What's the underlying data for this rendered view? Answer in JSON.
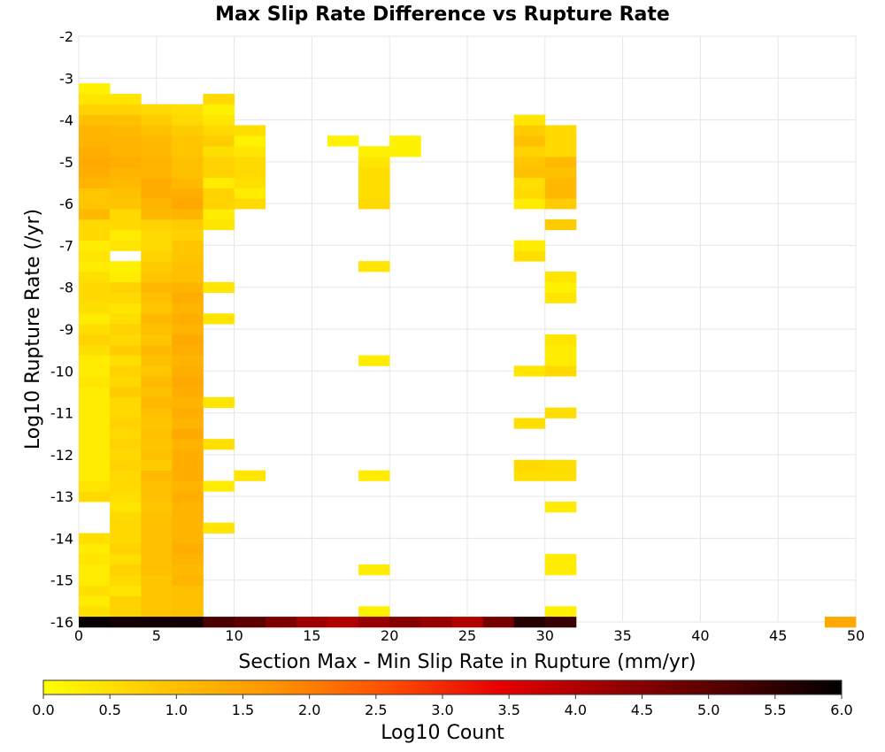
{
  "chart_data": {
    "type": "heatmap",
    "title": "Max Slip Rate Difference vs Rupture Rate",
    "xlabel": "Section Max - Min Slip Rate in Rupture (mm/yr)",
    "ylabel": "Log10 Rupture Rate (/yr)",
    "xlim": [
      0,
      50
    ],
    "ylim": [
      -16,
      -2
    ],
    "x_ticks": [
      0,
      5,
      10,
      15,
      20,
      25,
      30,
      35,
      40,
      45,
      50
    ],
    "y_ticks": [
      -2,
      -3,
      -4,
      -5,
      -6,
      -7,
      -8,
      -9,
      -10,
      -11,
      -12,
      -13,
      -14,
      -15,
      -16
    ],
    "grid": true,
    "bin_width_x": 2,
    "bin_height_y": 0.25,
    "colorbar": {
      "label": "Log10 Count",
      "range": [
        0,
        6
      ],
      "ticks": [
        "0.0",
        "0.5",
        "1.0",
        "1.5",
        "2.0",
        "2.5",
        "3.0",
        "3.5",
        "4.0",
        "4.5",
        "5.0",
        "5.5",
        "6.0"
      ],
      "colors": [
        "#ffff00",
        "#ffc800",
        "#ff9600",
        "#ff5000",
        "#e60000",
        "#960000",
        "#500000",
        "#000000"
      ]
    },
    "cells": [
      [
        1,
        -15.75,
        0.5
      ],
      [
        3,
        -15.75,
        0.7
      ],
      [
        5,
        -15.75,
        0.9
      ],
      [
        7,
        -15.75,
        1.0
      ],
      [
        19,
        -15.75,
        0.2
      ],
      [
        31,
        -15.75,
        0.2
      ],
      [
        1,
        -15.5,
        0.3
      ],
      [
        3,
        -15.5,
        0.7
      ],
      [
        5,
        -15.5,
        0.9
      ],
      [
        7,
        -15.5,
        1.0
      ],
      [
        1,
        -15.25,
        0.5
      ],
      [
        3,
        -15.25,
        0.4
      ],
      [
        5,
        -15.25,
        0.9
      ],
      [
        7,
        -15.25,
        1.0
      ],
      [
        1,
        -15,
        0.3
      ],
      [
        3,
        -15,
        0.6
      ],
      [
        5,
        -15,
        0.9
      ],
      [
        7,
        -15,
        1.2
      ],
      [
        1,
        -14.75,
        0.3
      ],
      [
        3,
        -14.75,
        0.7
      ],
      [
        5,
        -14.75,
        1.0
      ],
      [
        7,
        -14.75,
        1.1
      ],
      [
        19,
        -14.75,
        0.3
      ],
      [
        31,
        -14.75,
        0.3
      ],
      [
        1,
        -14.5,
        0.4
      ],
      [
        3,
        -14.5,
        0.5
      ],
      [
        5,
        -14.5,
        1.0
      ],
      [
        7,
        -14.5,
        1.2
      ],
      [
        31,
        -14.5,
        0.3
      ],
      [
        1,
        -14.25,
        0.3
      ],
      [
        3,
        -14.25,
        0.7
      ],
      [
        5,
        -14.25,
        1.0
      ],
      [
        7,
        -14.25,
        1.3
      ],
      [
        1,
        -14,
        0.5
      ],
      [
        3,
        -14,
        0.6
      ],
      [
        5,
        -14,
        1.0
      ],
      [
        7,
        -14,
        1.2
      ],
      [
        3,
        -13.75,
        0.6
      ],
      [
        5,
        -13.75,
        1.0
      ],
      [
        7,
        -13.75,
        1.2
      ],
      [
        9,
        -13.75,
        0.4
      ],
      [
        3,
        -13.5,
        0.6
      ],
      [
        5,
        -13.5,
        1.0
      ],
      [
        7,
        -13.5,
        1.2
      ],
      [
        3,
        -13.25,
        0.4
      ],
      [
        5,
        -13.25,
        0.9
      ],
      [
        7,
        -13.25,
        1.2
      ],
      [
        31,
        -13.25,
        0.3
      ],
      [
        1,
        -13,
        0.6
      ],
      [
        3,
        -13,
        0.5
      ],
      [
        5,
        -13,
        1.0
      ],
      [
        7,
        -13,
        1.3
      ],
      [
        1,
        -12.75,
        0.4
      ],
      [
        3,
        -12.75,
        0.6
      ],
      [
        5,
        -12.75,
        1.0
      ],
      [
        7,
        -12.75,
        1.2
      ],
      [
        9,
        -12.75,
        0.3
      ],
      [
        1,
        -12.5,
        0.3
      ],
      [
        3,
        -12.5,
        0.6
      ],
      [
        5,
        -12.5,
        1.1
      ],
      [
        7,
        -12.5,
        1.3
      ],
      [
        11,
        -12.5,
        0.4
      ],
      [
        19,
        -12.5,
        0.3
      ],
      [
        29,
        -12.5,
        0.5
      ],
      [
        31,
        -12.5,
        0.5
      ],
      [
        1,
        -12.25,
        0.3
      ],
      [
        3,
        -12.25,
        0.7
      ],
      [
        5,
        -12.25,
        0.8
      ],
      [
        7,
        -12.25,
        1.3
      ],
      [
        29,
        -12.25,
        0.6
      ],
      [
        31,
        -12.25,
        0.5
      ],
      [
        1,
        -12,
        0.3
      ],
      [
        3,
        -12,
        0.6
      ],
      [
        5,
        -12,
        1.0
      ],
      [
        7,
        -12,
        1.3
      ],
      [
        1,
        -11.75,
        0.3
      ],
      [
        3,
        -11.75,
        0.7
      ],
      [
        5,
        -11.75,
        0.9
      ],
      [
        7,
        -11.75,
        1.2
      ],
      [
        9,
        -11.75,
        0.5
      ],
      [
        1,
        -11.5,
        0.3
      ],
      [
        3,
        -11.5,
        0.6
      ],
      [
        5,
        -11.5,
        1.0
      ],
      [
        7,
        -11.5,
        1.4
      ],
      [
        1,
        -11.25,
        0.3
      ],
      [
        3,
        -11.25,
        0.7
      ],
      [
        5,
        -11.25,
        0.9
      ],
      [
        7,
        -11.25,
        1.2
      ],
      [
        29,
        -11.25,
        0.5
      ],
      [
        1,
        -11,
        0.3
      ],
      [
        3,
        -11,
        0.6
      ],
      [
        5,
        -11,
        1.0
      ],
      [
        7,
        -11,
        1.3
      ],
      [
        31,
        -11,
        0.5
      ],
      [
        1,
        -10.75,
        0.3
      ],
      [
        3,
        -10.75,
        0.6
      ],
      [
        5,
        -10.75,
        1.1
      ],
      [
        7,
        -10.75,
        1.2
      ],
      [
        9,
        -10.75,
        0.4
      ],
      [
        1,
        -10.5,
        0.3
      ],
      [
        3,
        -10.5,
        0.8
      ],
      [
        5,
        -10.5,
        1.0
      ],
      [
        7,
        -10.5,
        1.3
      ],
      [
        1,
        -10.25,
        0.4
      ],
      [
        3,
        -10.25,
        0.6
      ],
      [
        5,
        -10.25,
        1.1
      ],
      [
        7,
        -10.25,
        1.4
      ],
      [
        1,
        -10,
        0.3
      ],
      [
        3,
        -10,
        0.7
      ],
      [
        5,
        -10,
        0.9
      ],
      [
        7,
        -10,
        1.3
      ],
      [
        29,
        -10,
        0.4
      ],
      [
        31,
        -10,
        0.6
      ],
      [
        1,
        -9.75,
        0.3
      ],
      [
        3,
        -9.75,
        0.5
      ],
      [
        5,
        -9.75,
        1.0
      ],
      [
        7,
        -9.75,
        1.2
      ],
      [
        19,
        -9.75,
        0.3
      ],
      [
        31,
        -9.75,
        0.3
      ],
      [
        1,
        -9.5,
        0.5
      ],
      [
        3,
        -9.5,
        0.8
      ],
      [
        5,
        -9.5,
        1.1
      ],
      [
        7,
        -9.5,
        1.3
      ],
      [
        31,
        -9.5,
        0.3
      ],
      [
        1,
        -9.25,
        0.7
      ],
      [
        3,
        -9.25,
        0.6
      ],
      [
        5,
        -9.25,
        0.9
      ],
      [
        7,
        -9.25,
        1.4
      ],
      [
        31,
        -9.25,
        0.4
      ],
      [
        1,
        -9,
        0.5
      ],
      [
        3,
        -9,
        0.7
      ],
      [
        5,
        -9,
        1.0
      ],
      [
        7,
        -9,
        1.2
      ],
      [
        1,
        -8.75,
        0.3
      ],
      [
        3,
        -8.75,
        0.5
      ],
      [
        5,
        -8.75,
        1.1
      ],
      [
        7,
        -8.75,
        1.3
      ],
      [
        9,
        -8.75,
        0.4
      ],
      [
        1,
        -8.5,
        0.5
      ],
      [
        3,
        -8.5,
        0.4
      ],
      [
        5,
        -8.5,
        0.9
      ],
      [
        7,
        -8.5,
        1.2
      ],
      [
        1,
        -8.25,
        0.6
      ],
      [
        3,
        -8.25,
        0.6
      ],
      [
        5,
        -8.25,
        1.0
      ],
      [
        7,
        -8.25,
        1.3
      ],
      [
        31,
        -8.25,
        0.4
      ],
      [
        1,
        -8,
        0.6
      ],
      [
        3,
        -8,
        0.7
      ],
      [
        5,
        -8,
        1.1
      ],
      [
        7,
        -8,
        1.2
      ],
      [
        9,
        -8,
        0.4
      ],
      [
        31,
        -8,
        0.2
      ],
      [
        1,
        -7.75,
        0.5
      ],
      [
        3,
        -7.75,
        0.3
      ],
      [
        5,
        -7.75,
        0.9
      ],
      [
        7,
        -7.75,
        1.0
      ],
      [
        31,
        -7.75,
        0.4
      ],
      [
        1,
        -7.5,
        0.3
      ],
      [
        3,
        -7.5,
        0.2
      ],
      [
        5,
        -7.5,
        0.8
      ],
      [
        7,
        -7.5,
        1.0
      ],
      [
        19,
        -7.5,
        0.4
      ],
      [
        1,
        -7.25,
        0.4
      ],
      [
        5,
        -7.25,
        0.7
      ],
      [
        7,
        -7.25,
        0.9
      ],
      [
        29,
        -7.25,
        0.5
      ],
      [
        1,
        -7,
        0.3
      ],
      [
        3,
        -7,
        0.4
      ],
      [
        5,
        -7,
        0.6
      ],
      [
        7,
        -7,
        0.9
      ],
      [
        29,
        -7,
        0.3
      ],
      [
        1,
        -6.75,
        0.6
      ],
      [
        3,
        -6.75,
        0.3
      ],
      [
        5,
        -6.75,
        0.6
      ],
      [
        7,
        -6.75,
        0.7
      ],
      [
        1,
        -6.5,
        0.6
      ],
      [
        3,
        -6.5,
        0.6
      ],
      [
        5,
        -6.5,
        0.7
      ],
      [
        7,
        -6.5,
        0.8
      ],
      [
        9,
        -6.5,
        0.4
      ],
      [
        31,
        -6.5,
        0.8
      ],
      [
        1,
        -6.25,
        1.1
      ],
      [
        3,
        -6.25,
        0.6
      ],
      [
        5,
        -6.25,
        1.1
      ],
      [
        7,
        -6.25,
        1.2
      ],
      [
        9,
        -6.25,
        0.3
      ],
      [
        1,
        -6,
        0.9
      ],
      [
        3,
        -6,
        0.9
      ],
      [
        5,
        -6,
        1.2
      ],
      [
        7,
        -6,
        1.4
      ],
      [
        9,
        -6,
        0.7
      ],
      [
        11,
        -6,
        0.6
      ],
      [
        19,
        -6,
        0.6
      ],
      [
        29,
        -6,
        0.3
      ],
      [
        31,
        -6,
        0.8
      ],
      [
        1,
        -5.75,
        0.9
      ],
      [
        3,
        -5.75,
        1.0
      ],
      [
        5,
        -5.75,
        1.3
      ],
      [
        7,
        -5.75,
        1.3
      ],
      [
        9,
        -5.75,
        0.7
      ],
      [
        11,
        -5.75,
        0.3
      ],
      [
        19,
        -5.75,
        0.5
      ],
      [
        29,
        -5.75,
        0.6
      ],
      [
        31,
        -5.75,
        1.1
      ],
      [
        1,
        -5.5,
        1.2
      ],
      [
        3,
        -5.5,
        1.1
      ],
      [
        5,
        -5.5,
        1.3
      ],
      [
        7,
        -5.5,
        1.1
      ],
      [
        9,
        -5.5,
        0.3
      ],
      [
        11,
        -5.5,
        0.5
      ],
      [
        19,
        -5.5,
        0.5
      ],
      [
        29,
        -5.5,
        0.5
      ],
      [
        31,
        -5.5,
        1.1
      ],
      [
        1,
        -5.25,
        1.3
      ],
      [
        3,
        -5.25,
        1.2
      ],
      [
        5,
        -5.25,
        1.2
      ],
      [
        7,
        -5.25,
        1.0
      ],
      [
        9,
        -5.25,
        0.7
      ],
      [
        11,
        -5.25,
        0.6
      ],
      [
        19,
        -5.25,
        0.5
      ],
      [
        29,
        -5.25,
        1.0
      ],
      [
        31,
        -5.25,
        1.0
      ],
      [
        1,
        -5,
        1.4
      ],
      [
        3,
        -5,
        1.3
      ],
      [
        5,
        -5,
        1.2
      ],
      [
        7,
        -5,
        1.0
      ],
      [
        9,
        -5,
        0.7
      ],
      [
        11,
        -5,
        0.6
      ],
      [
        19,
        -5,
        0.4
      ],
      [
        29,
        -5,
        0.9
      ],
      [
        31,
        -5,
        1.1
      ],
      [
        1,
        -4.75,
        1.3
      ],
      [
        3,
        -4.75,
        1.2
      ],
      [
        5,
        -4.75,
        1.1
      ],
      [
        7,
        -4.75,
        0.9
      ],
      [
        9,
        -4.75,
        0.5
      ],
      [
        11,
        -4.75,
        0.4
      ],
      [
        19,
        -4.75,
        0.2
      ],
      [
        21,
        -4.75,
        0.2
      ],
      [
        29,
        -4.75,
        0.7
      ],
      [
        31,
        -4.75,
        0.6
      ],
      [
        1,
        -4.5,
        1.2
      ],
      [
        3,
        -4.5,
        1.2
      ],
      [
        5,
        -4.5,
        1.1
      ],
      [
        7,
        -4.5,
        0.9
      ],
      [
        9,
        -4.5,
        0.8
      ],
      [
        11,
        -4.5,
        0.2
      ],
      [
        17,
        -4.5,
        0.2
      ],
      [
        21,
        -4.5,
        0.2
      ],
      [
        29,
        -4.5,
        1.0
      ],
      [
        31,
        -4.5,
        0.6
      ],
      [
        1,
        -4.25,
        1.2
      ],
      [
        3,
        -4.25,
        1.1
      ],
      [
        5,
        -4.25,
        1.0
      ],
      [
        7,
        -4.25,
        0.8
      ],
      [
        9,
        -4.25,
        0.6
      ],
      [
        11,
        -4.25,
        0.5
      ],
      [
        29,
        -4.25,
        0.8
      ],
      [
        31,
        -4.25,
        0.6
      ],
      [
        1,
        -4,
        1.0
      ],
      [
        3,
        -4,
        1.0
      ],
      [
        5,
        -4,
        0.8
      ],
      [
        7,
        -4,
        0.6
      ],
      [
        9,
        -4,
        0.4
      ],
      [
        29,
        -4,
        0.4
      ],
      [
        1,
        -3.75,
        0.7
      ],
      [
        3,
        -3.75,
        0.7
      ],
      [
        5,
        -3.75,
        0.6
      ],
      [
        7,
        -3.75,
        0.5
      ],
      [
        9,
        -3.75,
        0.2
      ],
      [
        1,
        -3.5,
        0.4
      ],
      [
        3,
        -3.5,
        0.4
      ],
      [
        9,
        -3.5,
        0.6
      ],
      [
        1,
        -3.25,
        0.2
      ],
      [
        1,
        -16,
        5.9
      ],
      [
        3,
        -16,
        5.8
      ],
      [
        5,
        -16,
        5.8
      ],
      [
        7,
        -16,
        5.8
      ],
      [
        9,
        -16,
        5.2
      ],
      [
        11,
        -16,
        5.0
      ],
      [
        13,
        -16,
        4.6
      ],
      [
        15,
        -16,
        4.2
      ],
      [
        17,
        -16,
        4.0
      ],
      [
        19,
        -16,
        4.3
      ],
      [
        21,
        -16,
        4.5
      ],
      [
        23,
        -16,
        4.3
      ],
      [
        25,
        -16,
        4.0
      ],
      [
        27,
        -16,
        4.7
      ],
      [
        29,
        -16,
        5.6
      ],
      [
        31,
        -16,
        5.4
      ],
      [
        49,
        -16,
        1.4
      ]
    ]
  }
}
